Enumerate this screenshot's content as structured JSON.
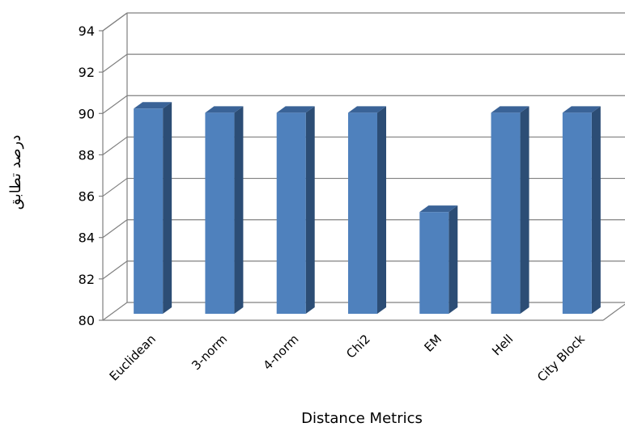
{
  "chart_data": {
    "type": "bar",
    "style": "3d-column",
    "categories": [
      "Euclidean",
      "3-norm",
      "4-norm",
      "Chi2",
      "EM",
      "Hell",
      "City Block"
    ],
    "values": [
      90,
      89.8,
      89.8,
      89.8,
      85,
      89.8,
      89.8
    ],
    "ylim": [
      80,
      94
    ],
    "yticks": [
      80,
      82,
      84,
      86,
      88,
      90,
      92,
      94
    ],
    "xlabel": "Distance Metrics",
    "ylabel": "درصد تطابق",
    "grid": true,
    "legend": "none",
    "colors": {
      "bar_front": "#4f81bd",
      "bar_side": "#2c4d75",
      "bar_top": "#3a6397",
      "grid": "#808080"
    }
  }
}
